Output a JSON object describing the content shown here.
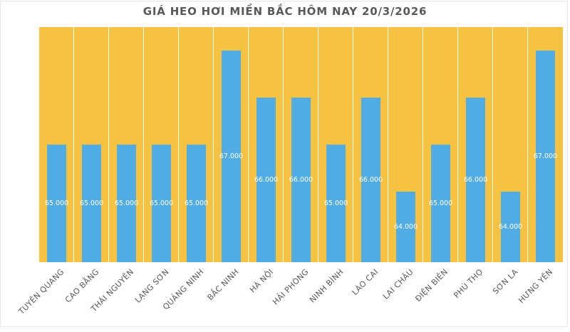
{
  "page": {
    "background": "#FFFFFF",
    "border_color": "#E9E9E9"
  },
  "chart_data": {
    "type": "bar",
    "title": "GIÁ HEO HƠI MIỀN BẮC HÔM NAY 20/3/2026",
    "categories": [
      "TUYÊN QUANG",
      "CAO BẰNG",
      "THÁI NGUYÊN",
      "LẠNG SƠN",
      "QUẢNG NINH",
      "BẮC NINH",
      "HÀ NỘI",
      "HẢI PHÒNG",
      "NINH BÌNH",
      "LÀO CAI",
      "LAI CHÂU",
      "ĐIỆN BIÊN",
      "PHÚ THỌ",
      "SƠN LA",
      "HƯNG YÊN"
    ],
    "values": [
      65000,
      65000,
      65000,
      65000,
      65000,
      67000,
      66000,
      66000,
      65000,
      66000,
      64000,
      65000,
      66000,
      64000,
      67000
    ],
    "value_labels": [
      "65.000",
      "65.000",
      "65.000",
      "65.000",
      "65.000",
      "67.000",
      "66.000",
      "66.000",
      "65.000",
      "66.000",
      "64.000",
      "65.000",
      "66.000",
      "64.000",
      "67.000"
    ],
    "xlabel": "",
    "ylabel": "",
    "ylim": [
      62500,
      67500
    ],
    "legend": "none",
    "grid": "vertical-white-separators-between-categories",
    "data_label_position": "inside-center",
    "x_label_rotation_deg": 45,
    "colors": {
      "plot_background": "#F5C242",
      "bar_fill": "#52ACE4",
      "data_label_text": "#FFFFFF",
      "title_text": "#595959",
      "axis_label_text": "#595959",
      "gridline": "#FFFFFF",
      "chart_background": "#FFFFFF"
    }
  }
}
